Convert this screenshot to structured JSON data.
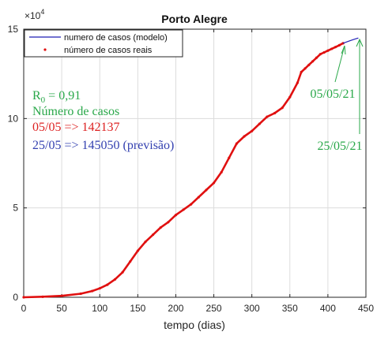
{
  "chart_data": {
    "type": "line",
    "title": "Porto Alegre",
    "xlabel": "tempo (dias)",
    "ylabel": "",
    "xlim": [
      0,
      450
    ],
    "ylim": [
      0,
      150000
    ],
    "y_exponent_label": "×10",
    "y_exponent_power": "4",
    "x_ticks": [
      0,
      50,
      100,
      150,
      200,
      250,
      300,
      350,
      400,
      450
    ],
    "x_tick_labels": [
      "0",
      "50",
      "100",
      "150",
      "200",
      "250",
      "300",
      "350",
      "400",
      "450"
    ],
    "y_ticks": [
      0,
      50000,
      100000,
      150000
    ],
    "y_tick_labels": [
      "0",
      "5",
      "10",
      "15"
    ],
    "grid": true,
    "legend_position": "top-left",
    "colors": {
      "model": "#1f1fb4",
      "real": "#e01010",
      "green": "#2aa84a",
      "red": "#dd2222",
      "blue": "#3340b0"
    },
    "series": [
      {
        "name": "numero de casos (modelo)",
        "style": "line",
        "x": [
          420,
          425,
          430,
          435,
          440
        ],
        "y": [
          142137,
          142900,
          143700,
          144400,
          145050
        ]
      },
      {
        "name": "número de casos reais",
        "style": "points",
        "x": [
          0,
          25,
          50,
          75,
          90,
          100,
          110,
          120,
          130,
          140,
          150,
          160,
          170,
          180,
          190,
          200,
          210,
          220,
          230,
          240,
          250,
          260,
          270,
          280,
          290,
          300,
          310,
          320,
          330,
          340,
          350,
          360,
          365,
          370,
          375,
          380,
          385,
          390,
          395,
          400,
          405,
          410,
          415,
          420
        ],
        "y": [
          0,
          300,
          800,
          2000,
          3500,
          5000,
          7000,
          10000,
          14000,
          20000,
          26000,
          31000,
          35000,
          39000,
          42000,
          46000,
          49000,
          52000,
          56000,
          60000,
          64000,
          70000,
          78000,
          86000,
          90000,
          93000,
          97000,
          101000,
          103000,
          106000,
          112000,
          120000,
          126000,
          128000,
          130000,
          132000,
          134000,
          136000,
          137000,
          138000,
          139000,
          140000,
          141000,
          142137
        ]
      }
    ],
    "annotations": {
      "r0_base": "R",
      "r0_sub": "0",
      "r0_value": " = 0,91",
      "cases_label": "Número de casos",
      "real_cases": "05/05 => 142137",
      "forecast": "25/05 => 145050 (previsão)",
      "date_real": "05/05/21",
      "date_forecast": "25/05/21"
    }
  }
}
